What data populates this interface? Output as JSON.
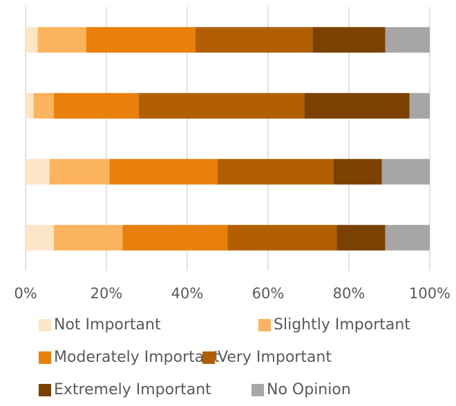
{
  "chart_data": {
    "type": "bar",
    "orientation": "horizontal",
    "stacked": "percent",
    "categories": [
      "",
      "",
      "",
      ""
    ],
    "series": [
      {
        "name": "Not Important",
        "color": "#fde5c8",
        "values": [
          3,
          2,
          6,
          7
        ]
      },
      {
        "name": "Slightly Important",
        "color": "#fbb35f",
        "values": [
          12,
          5,
          15,
          17
        ]
      },
      {
        "name": "Moderately Important",
        "color": "#e8800a",
        "values": [
          27,
          21,
          27,
          26
        ]
      },
      {
        "name": "Very Important",
        "color": "#b15f00",
        "values": [
          29,
          41,
          29,
          27
        ]
      },
      {
        "name": "Extremely Important",
        "color": "#7a4100",
        "values": [
          18,
          26,
          12,
          12
        ]
      },
      {
        "name": "No Opinion",
        "color": "#a6a6a6",
        "values": [
          11,
          5,
          12,
          11
        ]
      }
    ],
    "xlim": [
      0,
      100
    ],
    "x_ticks": [
      "0%",
      "20%",
      "40%",
      "60%",
      "80%",
      "100%"
    ],
    "grid": "vertical",
    "legend": "bottom"
  }
}
